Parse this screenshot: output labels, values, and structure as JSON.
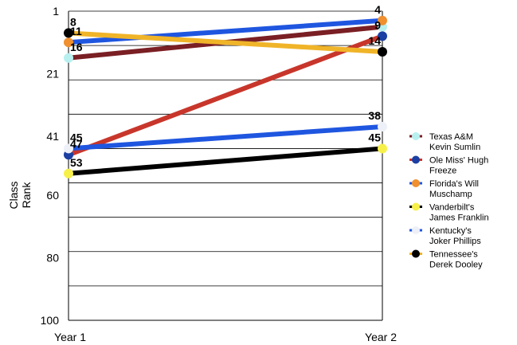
{
  "chart_data": {
    "type": "line",
    "title": "",
    "xlabel": "",
    "ylabel_lines": [
      "Class",
      "Rank"
    ],
    "categories": [
      "Year 1",
      "Year 2"
    ],
    "y_ticks": [
      "1",
      "21",
      "41",
      "60",
      "80",
      "100"
    ],
    "y_tick_values": [
      1,
      21,
      41,
      60,
      80,
      100
    ],
    "ylim": [
      1,
      100
    ],
    "y_reversed": true,
    "grid": true,
    "legend_position": "right",
    "series": [
      {
        "name_lines": [
          "Texas A&M",
          "Kevin Sumlin"
        ],
        "values": [
          16,
          6
        ],
        "labels": [
          "16",
          ""
        ],
        "line_color": "#7a1f24",
        "marker_color": "#b8f0f0"
      },
      {
        "name_lines": [
          "Ole Miss' Hugh",
          "Freeze"
        ],
        "values": [
          47,
          9
        ],
        "labels": [
          "47",
          "9"
        ],
        "line_color": "#c8362b",
        "marker_color": "#1b3fa3"
      },
      {
        "name_lines": [
          "Florida's Will",
          "Muschamp"
        ],
        "values": [
          11,
          4
        ],
        "labels": [
          "11",
          "4"
        ],
        "line_color": "#1f56e0",
        "marker_color": "#f0902f"
      },
      {
        "name_lines": [
          "Vanderbilt's",
          "James Franklin"
        ],
        "values": [
          53,
          45
        ],
        "labels": [
          "53",
          "45"
        ],
        "line_color": "#000000",
        "marker_color": "#f7f04a"
      },
      {
        "name_lines": [
          "Kentucky's",
          "Joker Phillips"
        ],
        "values": [
          45,
          38
        ],
        "labels": [
          "45",
          "38"
        ],
        "line_color": "#1f56e0",
        "marker_color": "#eef0f8"
      },
      {
        "name_lines": [
          "Tennessee's",
          "Derek Dooley"
        ],
        "values": [
          8,
          14
        ],
        "labels": [
          "8",
          "14"
        ],
        "line_color": "#f0b429",
        "marker_color": "#000000"
      }
    ]
  }
}
